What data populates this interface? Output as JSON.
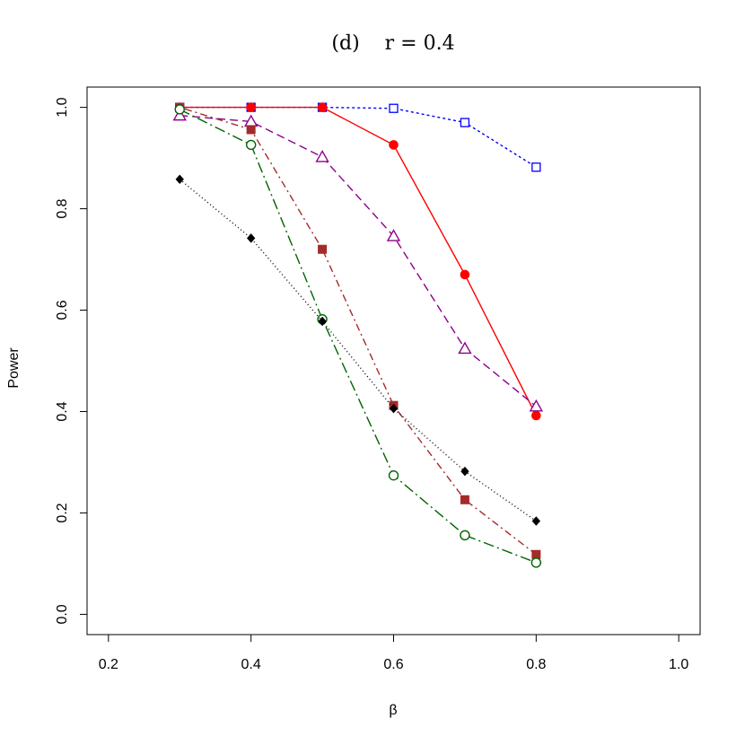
{
  "chart_data": {
    "type": "line",
    "title": "(d)    r = 0.4",
    "xlabel": "β",
    "ylabel": "Power",
    "xlim": [
      0.17,
      1.03
    ],
    "ylim": [
      -0.04,
      1.04
    ],
    "x_ticks": [
      "0.2",
      "0.4",
      "0.6",
      "0.8",
      "1.0"
    ],
    "y_ticks": [
      "0.0",
      "0.2",
      "0.4",
      "0.6",
      "0.8",
      "1.0"
    ],
    "grid": false,
    "legend": "none",
    "x": [
      0.3,
      0.4,
      0.5,
      0.6,
      0.7,
      0.8
    ],
    "series": [
      {
        "values": [
          1.0,
          1.0,
          1.0,
          0.998,
          0.97,
          0.882
        ],
        "color": "#0000ff",
        "marker": "open-square",
        "line": "dotted"
      },
      {
        "values": [
          1.0,
          1.0,
          1.0,
          0.926,
          0.67,
          0.392
        ],
        "color": "#ff0000",
        "marker": "filled-circle",
        "line": "solid"
      },
      {
        "values": [
          0.984,
          0.972,
          0.902,
          0.746,
          0.524,
          0.41
        ],
        "color": "#8b008b",
        "marker": "open-triangle",
        "line": "long-dash"
      },
      {
        "values": [
          1.0,
          0.956,
          0.72,
          0.412,
          0.226,
          0.118
        ],
        "color": "#a52a2a",
        "marker": "filled-square",
        "line": "dot-dash"
      },
      {
        "values": [
          0.996,
          0.926,
          0.582,
          0.274,
          0.156,
          0.102
        ],
        "color": "#006400",
        "marker": "open-circle",
        "line": "long-dash-dot"
      },
      {
        "values": [
          0.858,
          0.742,
          0.578,
          0.406,
          0.282,
          0.184
        ],
        "color": "#000000",
        "marker": "filled-diamond",
        "line": "fine-dotted"
      }
    ]
  }
}
